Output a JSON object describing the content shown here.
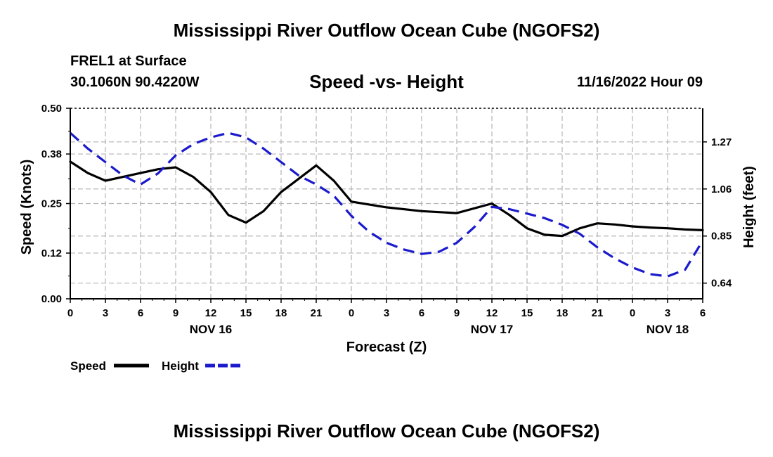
{
  "header": {
    "title": "Mississippi River Outflow Ocean Cube (NGOFS2)",
    "station": "FREL1 at Surface",
    "coordinates": "30.1060N  90.4220W",
    "subtitle": "Speed -vs- Height",
    "datetime": "11/16/2022 Hour 09"
  },
  "footer": {
    "title": "Mississippi River Outflow Ocean Cube (NGOFS2)"
  },
  "colors": {
    "speed": "#000000",
    "height": "#1a1acc",
    "grid": "#b4b4b4"
  },
  "chart_data": {
    "type": "line",
    "title": "Speed -vs- Height",
    "xlabel": "Forecast (Z)",
    "ylabel": "Speed (Knots)",
    "y2label": "Height (feet)",
    "x_range": [
      0,
      54
    ],
    "ylim": [
      0.0,
      0.5
    ],
    "y2lim": [
      0.57,
      1.42
    ],
    "x_ticks": [
      0,
      3,
      6,
      9,
      12,
      15,
      18,
      21,
      24,
      27,
      30,
      33,
      36,
      39,
      42,
      45,
      48,
      51,
      54
    ],
    "x_tick_labels": [
      "0",
      "3",
      "6",
      "9",
      "12",
      "15",
      "18",
      "21",
      "0",
      "3",
      "6",
      "9",
      "12",
      "15",
      "18",
      "21",
      "0",
      "3",
      "6"
    ],
    "date_labels": [
      {
        "x": 12,
        "label": "NOV 16"
      },
      {
        "x": 36,
        "label": "NOV 17"
      },
      {
        "x": 51,
        "label": "NOV 18"
      }
    ],
    "y_ticks": [
      0.0,
      0.12,
      0.25,
      0.38,
      0.5
    ],
    "y_tick_labels": [
      "0.00",
      "0.12",
      "0.25",
      "0.38",
      "0.50"
    ],
    "y2_ticks": [
      0.64,
      0.85,
      1.06,
      1.27
    ],
    "y2_tick_labels": [
      "0.64",
      "0.85",
      "1.06",
      "1.27"
    ],
    "grid": true,
    "series": [
      {
        "name": "Speed",
        "axis": "left",
        "style": "solid",
        "x": [
          0,
          1.5,
          3,
          4.5,
          6,
          7.5,
          9,
          10.5,
          12,
          13.5,
          15,
          16.5,
          18,
          19.5,
          21,
          22.5,
          24,
          27,
          30,
          33,
          36,
          37.5,
          39,
          40.5,
          42,
          43.5,
          45,
          46.5,
          48,
          49.5,
          51,
          52.5,
          54
        ],
        "values": [
          0.36,
          0.33,
          0.31,
          0.32,
          0.33,
          0.34,
          0.345,
          0.32,
          0.28,
          0.22,
          0.2,
          0.23,
          0.28,
          0.315,
          0.35,
          0.31,
          0.255,
          0.24,
          0.23,
          0.225,
          0.25,
          0.22,
          0.185,
          0.168,
          0.165,
          0.185,
          0.198,
          0.195,
          0.19,
          0.187,
          0.185,
          0.182,
          0.18
        ]
      },
      {
        "name": "Height",
        "axis": "right",
        "style": "dashed",
        "x": [
          0,
          1.5,
          3,
          4.5,
          6,
          7.5,
          9,
          10.5,
          12,
          13.5,
          15,
          16.5,
          18,
          19.5,
          21,
          22.5,
          24,
          25.5,
          27,
          28.5,
          30,
          31.5,
          33,
          34.5,
          36,
          37.5,
          39,
          40.5,
          42,
          43.5,
          45,
          46.5,
          48,
          49.5,
          51,
          52.5,
          54
        ],
        "values": [
          1.31,
          1.24,
          1.18,
          1.12,
          1.08,
          1.13,
          1.21,
          1.26,
          1.29,
          1.31,
          1.29,
          1.24,
          1.18,
          1.12,
          1.08,
          1.03,
          0.94,
          0.87,
          0.82,
          0.79,
          0.77,
          0.78,
          0.82,
          0.89,
          0.98,
          0.97,
          0.95,
          0.93,
          0.9,
          0.86,
          0.8,
          0.75,
          0.71,
          0.68,
          0.67,
          0.7,
          0.83
        ]
      }
    ],
    "legend": [
      {
        "label": "Speed",
        "style": "solid"
      },
      {
        "label": "Height",
        "style": "dashed"
      }
    ],
    "legend_position": "bottom-left"
  }
}
